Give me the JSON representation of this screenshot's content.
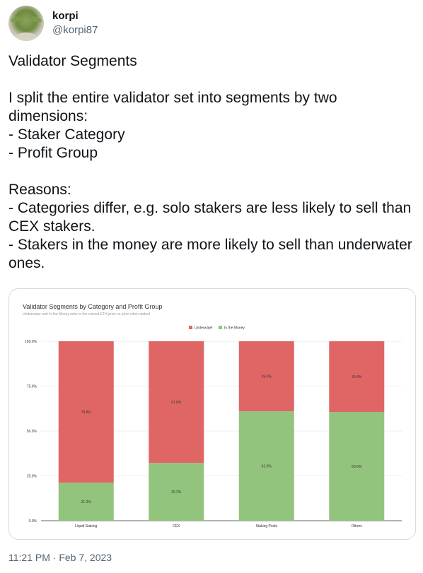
{
  "author": {
    "display_name": "korpi",
    "handle": "@korpi87"
  },
  "tweet": {
    "lines": [
      "Validator Segments",
      "",
      "I split the entire validator set into segments by two dimensions:",
      "- Staker Category",
      "- Profit Group",
      "",
      "Reasons:",
      "- Categories differ, e.g. solo stakers are less likely to sell than CEX stakers.",
      "- Stakers in the money are more likely to sell than underwater ones."
    ],
    "timestamp": "11:21 PM · Feb 7, 2023"
  },
  "colors": {
    "underwater": "#e06666",
    "in_the_money": "#93c47d"
  },
  "chart_data": {
    "type": "bar",
    "stacked": true,
    "title": "Validator Segments by Category and Profit Group",
    "subtitle": "Underwater and In the Money refer to the current ETH price vs price when staked",
    "categories": [
      "Liquid Staking",
      "CEX",
      "Staking Pools",
      "Others"
    ],
    "series": [
      {
        "name": "Underwater",
        "values": [
          78.8,
          67.8,
          39.0,
          39.4
        ],
        "labels": [
          "78.8%",
          "67.8%",
          "39.0%",
          "39.4%"
        ]
      },
      {
        "name": "In the Money",
        "values": [
          21.2,
          32.2,
          61.0,
          60.6
        ],
        "labels": [
          "21.2%",
          "32.2%",
          "61.0%",
          "60.6%"
        ]
      }
    ],
    "yticks": [
      "0.0%",
      "25.0%",
      "50.0%",
      "75.0%",
      "100.0%"
    ],
    "ylim": [
      0,
      100
    ],
    "grid": true,
    "legend_position": "top-center"
  }
}
